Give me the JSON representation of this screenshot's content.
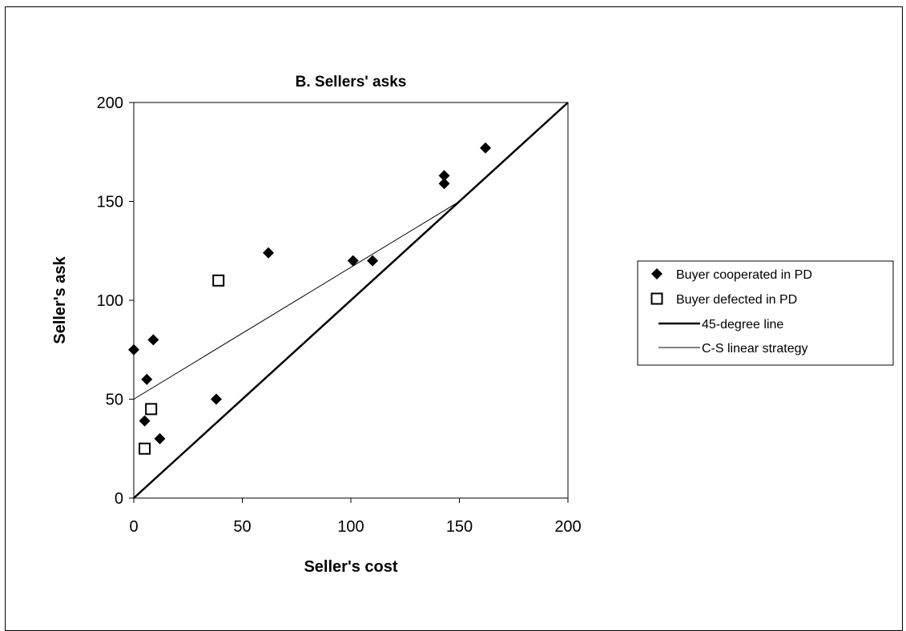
{
  "chart_data": {
    "type": "scatter",
    "title": "B. Sellers' asks",
    "xlabel": "Seller's cost",
    "ylabel": "Seller's ask",
    "xlim": [
      0,
      200
    ],
    "ylim": [
      0,
      200
    ],
    "xticks": [
      0,
      50,
      100,
      150,
      200
    ],
    "yticks": [
      0,
      50,
      100,
      150,
      200
    ],
    "grid": false,
    "legend_position": "right",
    "series": [
      {
        "name": "Buyer cooperated in PD",
        "kind": "scatter",
        "marker": "diamond-filled",
        "color": "#000000",
        "points": [
          [
            0,
            75
          ],
          [
            6,
            60
          ],
          [
            9,
            80
          ],
          [
            5,
            39
          ],
          [
            12,
            30
          ],
          [
            38,
            50
          ],
          [
            62,
            124
          ],
          [
            101,
            120
          ],
          [
            110,
            120
          ],
          [
            143,
            163
          ],
          [
            143,
            159
          ],
          [
            162,
            177
          ]
        ]
      },
      {
        "name": "Buyer defected in PD",
        "kind": "scatter",
        "marker": "square-open",
        "color": "#000000",
        "points": [
          [
            39,
            110
          ],
          [
            8,
            45
          ],
          [
            5,
            25
          ]
        ]
      },
      {
        "name": "45-degree line",
        "kind": "line",
        "weight": "thick",
        "color": "#000000",
        "points": [
          [
            0,
            0
          ],
          [
            200,
            200
          ]
        ]
      },
      {
        "name": "C-S linear strategy",
        "kind": "line",
        "weight": "thin",
        "color": "#000000",
        "points": [
          [
            0,
            50
          ],
          [
            150,
            150
          ]
        ]
      }
    ]
  }
}
